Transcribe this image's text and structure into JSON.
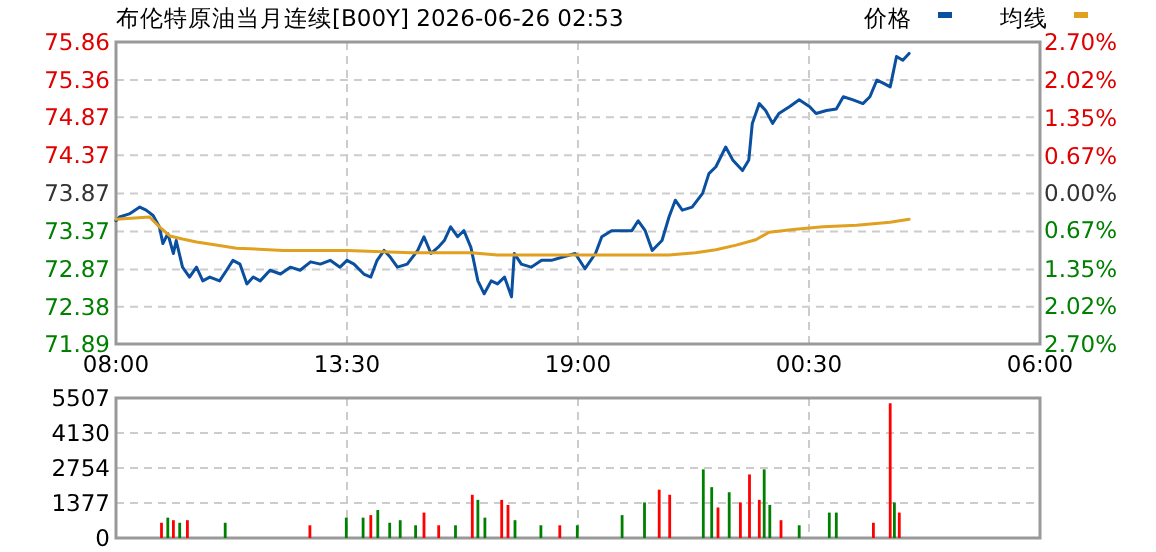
{
  "chart_data": [
    {
      "type": "line",
      "title": "布伦特原油当月连续[B00Y] 2026-06-26 02:53",
      "legend": "top right",
      "grid": true,
      "line_style": "solid",
      "xlim": [
        "2026-06-25T08:00",
        "2026-06-26T06:00"
      ],
      "xticks": [
        {
          "value": "2026-06-25T08:00",
          "label": "08:00"
        },
        {
          "value": "2026-06-25T13:30",
          "label": "13:30"
        },
        {
          "value": "2026-06-25T19:00",
          "label": "19:00"
        },
        {
          "value": "2026-06-26T00:30",
          "label": "00:30"
        },
        {
          "value": "2026-06-26T06:00",
          "label": "06:00"
        }
      ],
      "ylim": [
        71.89,
        75.86
      ],
      "yticks": [
        71.89,
        72.38,
        72.87,
        73.37,
        73.87,
        74.37,
        74.87,
        75.36,
        75.86
      ],
      "y2lim": [
        -2.7,
        2.7
      ],
      "y2ticks": [
        {
          "value": -2.7,
          "label": "2.70%"
        },
        {
          "value": -2.02,
          "label": "2.02%"
        },
        {
          "value": -1.35,
          "label": "1.35%"
        },
        {
          "value": -0.67,
          "label": "0.67%"
        },
        {
          "value": 0,
          "label": "0.00%"
        },
        {
          "value": 0.67,
          "label": "0.67%"
        },
        {
          "value": 1.35,
          "label": "1.35%"
        },
        {
          "value": 2.02,
          "label": "2.02%"
        },
        {
          "value": 2.7,
          "label": "2.70%"
        }
      ],
      "series": [
        {
          "name": "价格",
          "color": "#0a4fa0",
          "x": [
            "2026-06-25T08:00",
            "2026-06-25T08:05",
            "2026-06-25T08:19",
            "2026-06-25T08:34",
            "2026-06-25T08:43",
            "2026-06-25T08:53",
            "2026-06-25T09:02",
            "2026-06-25T09:07",
            "2026-06-25T09:14",
            "2026-06-25T09:22",
            "2026-06-25T09:26",
            "2026-06-25T09:35",
            "2026-06-25T09:45",
            "2026-06-25T09:55",
            "2026-06-25T10:04",
            "2026-06-25T10:14",
            "2026-06-25T10:28",
            "2026-06-25T10:38",
            "2026-06-25T10:47",
            "2026-06-25T10:57",
            "2026-06-25T11:07",
            "2026-06-25T11:16",
            "2026-06-25T11:26",
            "2026-06-25T11:40",
            "2026-06-25T11:55",
            "2026-06-25T12:09",
            "2026-06-25T12:23",
            "2026-06-25T12:38",
            "2026-06-25T12:52",
            "2026-06-25T13:06",
            "2026-06-25T13:20",
            "2026-06-25T13:30",
            "2026-06-25T13:40",
            "2026-06-25T13:54",
            "2026-06-25T14:04",
            "2026-06-25T14:13",
            "2026-06-25T14:23",
            "2026-06-25T14:32",
            "2026-06-25T14:42",
            "2026-06-25T14:56",
            "2026-06-25T15:11",
            "2026-06-25T15:20",
            "2026-06-25T15:30",
            "2026-06-25T15:40",
            "2026-06-25T15:49",
            "2026-06-25T15:58",
            "2026-06-25T16:08",
            "2026-06-25T16:17",
            "2026-06-25T16:27",
            "2026-06-25T16:37",
            "2026-06-25T16:46",
            "2026-06-25T16:56",
            "2026-06-25T17:05",
            "2026-06-25T17:15",
            "2026-06-25T17:25",
            "2026-06-25T17:29",
            "2026-06-25T17:39",
            "2026-06-25T17:53",
            "2026-06-25T18:08",
            "2026-06-25T18:22",
            "2026-06-25T18:37",
            "2026-06-25T18:56",
            "2026-06-25T19:10",
            "2026-06-25T19:25",
            "2026-06-25T19:34",
            "2026-06-25T19:48",
            "2026-06-25T20:02",
            "2026-06-25T20:17",
            "2026-06-25T20:26",
            "2026-06-25T20:36",
            "2026-06-25T20:46",
            "2026-06-25T21:00",
            "2026-06-25T21:10",
            "2026-06-25T21:19",
            "2026-06-25T21:29",
            "2026-06-25T21:43",
            "2026-06-25T21:58",
            "2026-06-25T22:07",
            "2026-06-25T22:17",
            "2026-06-25T22:31",
            "2026-06-25T22:41",
            "2026-06-25T22:55",
            "2026-06-25T23:04",
            "2026-06-25T23:09",
            "2026-06-25T23:19",
            "2026-06-25T23:28",
            "2026-06-25T23:38",
            "2026-06-25T23:47",
            "2026-06-26T00:02",
            "2026-06-26T00:16",
            "2026-06-26T00:31",
            "2026-06-26T00:40",
            "2026-06-26T00:55",
            "2026-06-26T01:09",
            "2026-06-26T01:19",
            "2026-06-26T01:33",
            "2026-06-26T01:47",
            "2026-06-26T01:57",
            "2026-06-26T02:07",
            "2026-06-26T02:16",
            "2026-06-26T02:26",
            "2026-06-26T02:31",
            "2026-06-26T02:35",
            "2026-06-26T02:44",
            "2026-06-26T02:53"
          ],
          "values": [
            73.51,
            73.56,
            73.6,
            73.69,
            73.65,
            73.58,
            73.43,
            73.21,
            73.34,
            73.08,
            73.25,
            72.9,
            72.77,
            72.9,
            72.72,
            72.77,
            72.72,
            72.86,
            72.99,
            72.94,
            72.68,
            72.77,
            72.72,
            72.86,
            72.81,
            72.9,
            72.86,
            72.97,
            72.94,
            72.99,
            72.9,
            72.99,
            72.94,
            72.81,
            72.77,
            72.99,
            73.12,
            73.03,
            72.9,
            72.94,
            73.12,
            73.3,
            73.08,
            73.16,
            73.25,
            73.43,
            73.3,
            73.38,
            73.16,
            72.72,
            72.55,
            72.72,
            72.68,
            72.77,
            72.51,
            73.08,
            72.94,
            72.9,
            72.99,
            72.99,
            73.03,
            73.08,
            72.88,
            73.08,
            73.3,
            73.38,
            73.38,
            73.38,
            73.51,
            73.38,
            73.12,
            73.25,
            73.56,
            73.78,
            73.65,
            73.69,
            73.87,
            74.13,
            74.22,
            74.48,
            74.31,
            74.17,
            74.31,
            74.79,
            75.05,
            74.96,
            74.79,
            74.92,
            75.01,
            75.1,
            75.01,
            74.92,
            74.96,
            74.98,
            75.14,
            75.1,
            75.05,
            75.14,
            75.36,
            75.32,
            75.27,
            75.49,
            75.67,
            75.62,
            75.71
          ]
        },
        {
          "name": "均线",
          "color": "#e0a020",
          "x": [
            "2026-06-25T08:00",
            "2026-06-25T08:48",
            "2026-06-25T09:02",
            "2026-06-25T09:17",
            "2026-06-25T09:35",
            "2026-06-25T09:55",
            "2026-06-25T10:23",
            "2026-06-25T10:52",
            "2026-06-25T11:59",
            "2026-06-25T13:30",
            "2026-06-25T15:01",
            "2026-06-25T16:27",
            "2026-06-25T17:05",
            "2026-06-25T18:37",
            "2026-06-25T21:10",
            "2026-06-25T21:48",
            "2026-06-25T22:17",
            "2026-06-25T22:46",
            "2026-06-25T23:14",
            "2026-06-25T23:33",
            "2026-06-26T00:11",
            "2026-06-26T00:50",
            "2026-06-26T01:38",
            "2026-06-26T02:26",
            "2026-06-26T02:53"
          ],
          "values": [
            73.53,
            73.56,
            73.43,
            73.31,
            73.27,
            73.23,
            73.19,
            73.15,
            73.12,
            73.12,
            73.09,
            73.09,
            73.06,
            73.06,
            73.06,
            73.09,
            73.13,
            73.19,
            73.26,
            73.36,
            73.4,
            73.43,
            73.45,
            73.49,
            73.53
          ]
        }
      ]
    },
    {
      "type": "bar",
      "grid": true,
      "tick_labels": "y",
      "xlim": [
        "2026-06-25T08:00",
        "2026-06-26T06:00"
      ],
      "ylim": [
        0,
        5507
      ],
      "yticks": [
        0,
        1377,
        2754,
        4130,
        5507
      ],
      "x": [
        "2026-06-25T09:05",
        "2026-06-25T09:14",
        "2026-06-25T09:22",
        "2026-06-25T09:31",
        "2026-06-25T09:42",
        "2026-06-25T10:36",
        "2026-06-25T12:37",
        "2026-06-25T13:29",
        "2026-06-25T13:53",
        "2026-06-25T14:04",
        "2026-06-25T14:14",
        "2026-06-25T14:31",
        "2026-06-25T14:46",
        "2026-06-25T15:08",
        "2026-06-25T15:20",
        "2026-06-25T15:41",
        "2026-06-25T16:05",
        "2026-06-25T16:29",
        "2026-06-25T16:37",
        "2026-06-25T16:47",
        "2026-06-25T17:11",
        "2026-06-25T17:20",
        "2026-06-25T17:30",
        "2026-06-25T18:07",
        "2026-06-25T18:34",
        "2026-06-25T18:59",
        "2026-06-25T20:03",
        "2026-06-25T20:35",
        "2026-06-25T20:56",
        "2026-06-25T21:11",
        "2026-06-25T21:59",
        "2026-06-25T22:11",
        "2026-06-25T22:20",
        "2026-06-25T22:36",
        "2026-06-25T22:52",
        "2026-06-25T23:05",
        "2026-06-25T23:19",
        "2026-06-25T23:26",
        "2026-06-25T23:34",
        "2026-06-25T23:50",
        "2026-06-26T00:16",
        "2026-06-26T00:59",
        "2026-06-26T01:09",
        "2026-06-26T02:02",
        "2026-06-26T02:26",
        "2026-06-26T02:32",
        "2026-06-26T02:39"
      ],
      "values": [
        600,
        800,
        700,
        600,
        700,
        600,
        500,
        800,
        800,
        900,
        1100,
        600,
        700,
        500,
        1000,
        500,
        500,
        1700,
        1500,
        800,
        1500,
        1300,
        700,
        500,
        500,
        500,
        900,
        1400,
        1900,
        1700,
        2700,
        2000,
        1200,
        1800,
        1400,
        2500,
        1500,
        2700,
        1300,
        700,
        500,
        1000,
        1000,
        600,
        5300,
        1400,
        1000
      ],
      "colors": [
        "#ff0000",
        "#008000",
        "#ff0000",
        "#008000",
        "#ff0000",
        "#008000",
        "#ff0000",
        "#008000",
        "#008000",
        "#ff0000",
        "#008000",
        "#008000",
        "#008000",
        "#008000",
        "#ff0000",
        "#ff0000",
        "#008000",
        "#ff0000",
        "#008000",
        "#008000",
        "#ff0000",
        "#ff0000",
        "#008000",
        "#008000",
        "#ff0000",
        "#008000",
        "#008000",
        "#008000",
        "#ff0000",
        "#ff0000",
        "#008000",
        "#008000",
        "#ff0000",
        "#008000",
        "#ff0000",
        "#ff0000",
        "#ff0000",
        "#008000",
        "#008000",
        "#ff0000",
        "#008000",
        "#008000",
        "#008000",
        "#ff0000",
        "#ff0000",
        "#008000",
        "#ff0000"
      ]
    }
  ]
}
